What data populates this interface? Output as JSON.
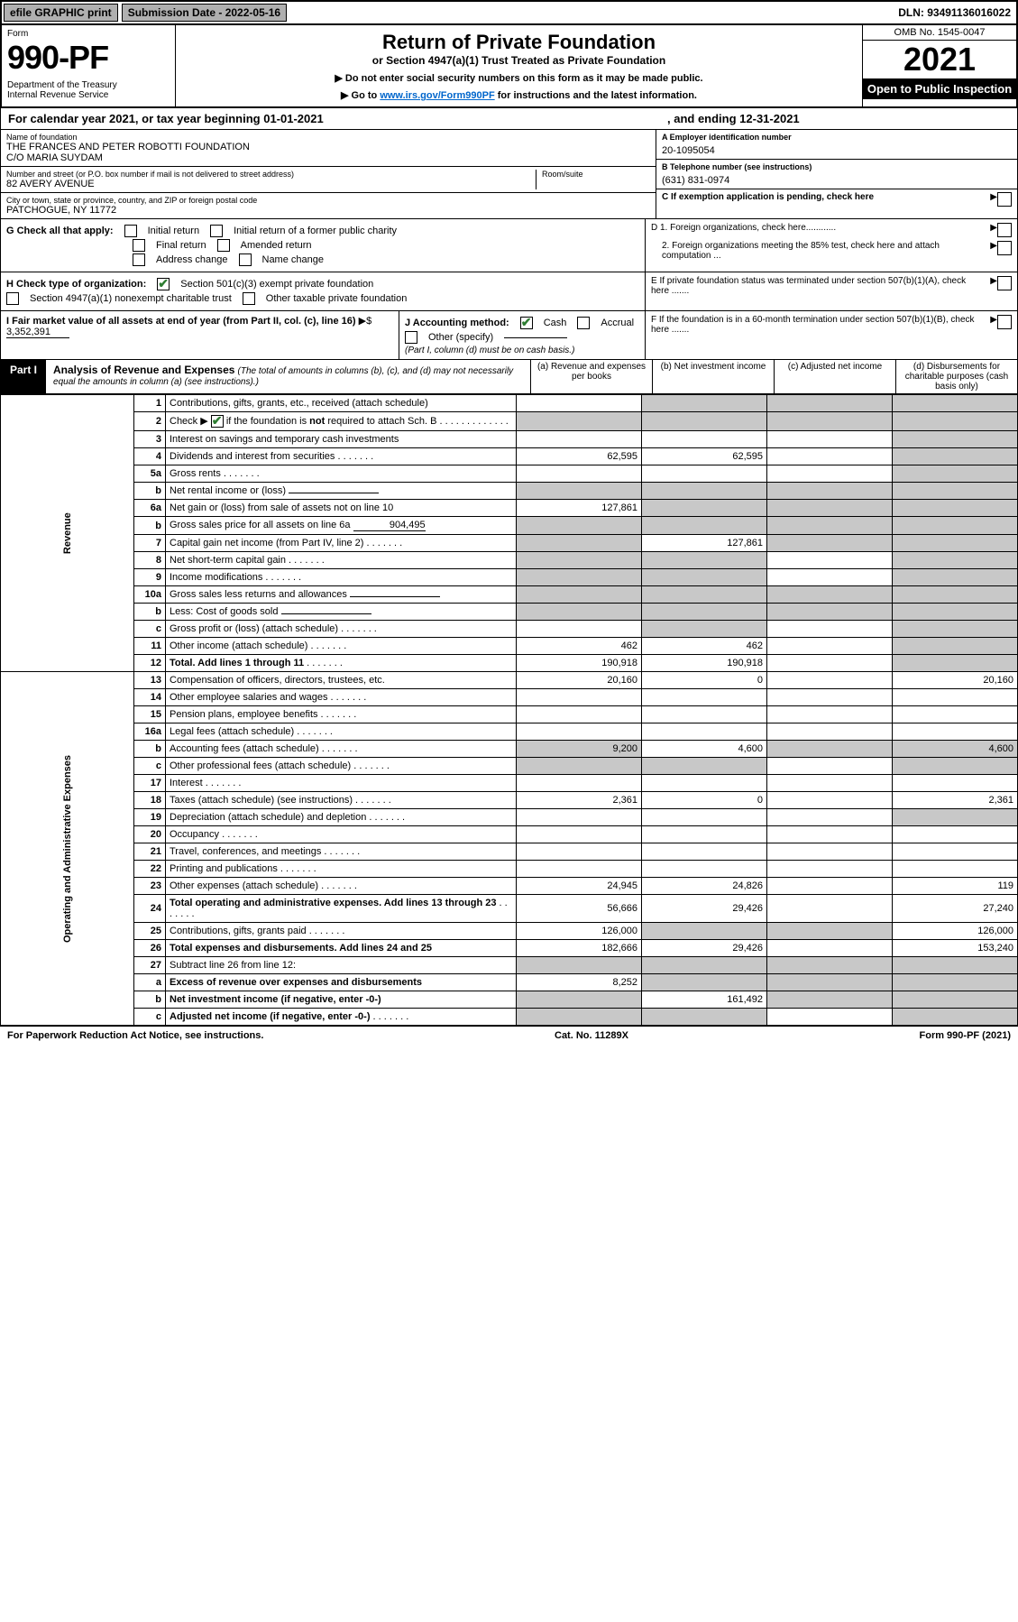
{
  "topbar": {
    "efile": "efile GRAPHIC print",
    "submission": "Submission Date - 2022-05-16",
    "dln": "DLN: 93491136016022"
  },
  "header": {
    "form_word": "Form",
    "form_num": "990-PF",
    "dept": "Department of the Treasury\nInternal Revenue Service",
    "title": "Return of Private Foundation",
    "subtitle": "or Section 4947(a)(1) Trust Treated as Private Foundation",
    "instr1": "▶ Do not enter social security numbers on this form as it may be made public.",
    "instr2a": "▶ Go to ",
    "instr2_link": "www.irs.gov/Form990PF",
    "instr2b": " for instructions and the latest information.",
    "omb": "OMB No. 1545-0047",
    "year": "2021",
    "open": "Open to Public Inspection"
  },
  "cal_year": {
    "left": "For calendar year 2021, or tax year beginning 01-01-2021",
    "right": ", and ending 12-31-2021"
  },
  "id": {
    "name_lbl": "Name of foundation",
    "name": "THE FRANCES AND PETER ROBOTTI FOUNDATION\nC/O MARIA SUYDAM",
    "addr_lbl": "Number and street (or P.O. box number if mail is not delivered to street address)",
    "addr": "82 AVERY AVENUE",
    "room_lbl": "Room/suite",
    "city_lbl": "City or town, state or province, country, and ZIP or foreign postal code",
    "city": "PATCHOGUE, NY  11772",
    "a_lbl": "A Employer identification number",
    "a_val": "20-1095054",
    "b_lbl": "B Telephone number (see instructions)",
    "b_val": "(631) 831-0974",
    "c_lbl": "C If exemption application is pending, check here"
  },
  "g": {
    "label": "G Check all that apply:",
    "opts": [
      "Initial return",
      "Initial return of a former public charity",
      "Final return",
      "Amended return",
      "Address change",
      "Name change"
    ]
  },
  "h": {
    "label": "H Check type of organization:",
    "opt1": "Section 501(c)(3) exempt private foundation",
    "opt2": "Section 4947(a)(1) nonexempt charitable trust",
    "opt3": "Other taxable private foundation"
  },
  "i": {
    "label": "I Fair market value of all assets at end of year (from Part II, col. (c), line 16)",
    "arrow": "▶$",
    "val": "3,352,391"
  },
  "j": {
    "label": "J Accounting method:",
    "cash": "Cash",
    "accrual": "Accrual",
    "other": "Other (specify)",
    "note": "(Part I, column (d) must be on cash basis.)"
  },
  "d_right": {
    "d1": "D 1. Foreign organizations, check here............",
    "d2": "2. Foreign organizations meeting the 85% test, check here and attach computation ...",
    "e": "E  If private foundation status was terminated under section 507(b)(1)(A), check here .......",
    "f": "F  If the foundation is in a 60-month termination under section 507(b)(1)(B), check here .......",
    "arrow": "▶"
  },
  "part1": {
    "tag": "Part I",
    "title": "Analysis of Revenue and Expenses",
    "note": "(The total of amounts in columns (b), (c), and (d) may not necessarily equal the amounts in column (a) (see instructions).)",
    "col_a": "(a)   Revenue and expenses per books",
    "col_b": "(b)   Net investment income",
    "col_c": "(c)   Adjusted net income",
    "col_d": "(d)   Disbursements for charitable purposes (cash basis only)"
  },
  "side": {
    "revenue": "Revenue",
    "expenses": "Operating and Administrative Expenses"
  },
  "rows": [
    {
      "n": "1",
      "d": "Contributions, gifts, grants, etc., received (attach schedule)"
    },
    {
      "n": "2",
      "d": "Check ▶ ☑ if the foundation is not required to attach Sch. B",
      "hascb": true,
      "dots": true
    },
    {
      "n": "3",
      "d": "Interest on savings and temporary cash investments"
    },
    {
      "n": "4",
      "d": "Dividends and interest from securities",
      "dots": true,
      "a": "62,595",
      "b": "62,595"
    },
    {
      "n": "5a",
      "d": "Gross rents",
      "dots": true
    },
    {
      "n": "b",
      "d": "Net rental income or (loss)",
      "inline": true
    },
    {
      "n": "6a",
      "d": "Net gain or (loss) from sale of assets not on line 10",
      "a": "127,861"
    },
    {
      "n": "b",
      "d": "Gross sales price for all assets on line 6a",
      "inline_val": "904,495"
    },
    {
      "n": "7",
      "d": "Capital gain net income (from Part IV, line 2)",
      "dots": true,
      "b": "127,861"
    },
    {
      "n": "8",
      "d": "Net short-term capital gain",
      "dots": true
    },
    {
      "n": "9",
      "d": "Income modifications",
      "dots": true
    },
    {
      "n": "10a",
      "d": "Gross sales less returns and allowances",
      "inline": true
    },
    {
      "n": "b",
      "d": "Less: Cost of goods sold",
      "dots": true,
      "inline": true
    },
    {
      "n": "c",
      "d": "Gross profit or (loss) (attach schedule)",
      "dots": true
    },
    {
      "n": "11",
      "d": "Other income (attach schedule)",
      "dots": true,
      "a": "462",
      "b": "462"
    },
    {
      "n": "12",
      "d": "Total. Add lines 1 through 11",
      "bold": true,
      "dots": true,
      "a": "190,918",
      "b": "190,918"
    }
  ],
  "exp_rows": [
    {
      "n": "13",
      "d": "Compensation of officers, directors, trustees, etc.",
      "a": "20,160",
      "b": "0",
      "dd": "20,160"
    },
    {
      "n": "14",
      "d": "Other employee salaries and wages",
      "dots": true
    },
    {
      "n": "15",
      "d": "Pension plans, employee benefits",
      "dots": true
    },
    {
      "n": "16a",
      "d": "Legal fees (attach schedule)",
      "dots": true
    },
    {
      "n": "b",
      "d": "Accounting fees (attach schedule)",
      "dots": true,
      "a": "9,200",
      "b": "4,600",
      "dd": "4,600"
    },
    {
      "n": "c",
      "d": "Other professional fees (attach schedule)",
      "dots": true
    },
    {
      "n": "17",
      "d": "Interest",
      "dots": true
    },
    {
      "n": "18",
      "d": "Taxes (attach schedule) (see instructions)",
      "dots": true,
      "a": "2,361",
      "b": "0",
      "dd": "2,361"
    },
    {
      "n": "19",
      "d": "Depreciation (attach schedule) and depletion",
      "dots": true
    },
    {
      "n": "20",
      "d": "Occupancy",
      "dots": true
    },
    {
      "n": "21",
      "d": "Travel, conferences, and meetings",
      "dots": true
    },
    {
      "n": "22",
      "d": "Printing and publications",
      "dots": true
    },
    {
      "n": "23",
      "d": "Other expenses (attach schedule)",
      "dots": true,
      "a": "24,945",
      "b": "24,826",
      "dd": "119"
    },
    {
      "n": "24",
      "d": "Total operating and administrative expenses. Add lines 13 through 23",
      "bold": true,
      "dots": true,
      "a": "56,666",
      "b": "29,426",
      "dd": "27,240"
    },
    {
      "n": "25",
      "d": "Contributions, gifts, grants paid",
      "dots": true,
      "a": "126,000",
      "dd": "126,000"
    },
    {
      "n": "26",
      "d": "Total expenses and disbursements. Add lines 24 and 25",
      "bold": true,
      "a": "182,666",
      "b": "29,426",
      "dd": "153,240"
    },
    {
      "n": "27",
      "d": "Subtract line 26 from line 12:"
    },
    {
      "n": "a",
      "d": "Excess of revenue over expenses and disbursements",
      "bold": true,
      "a": "8,252"
    },
    {
      "n": "b",
      "d": "Net investment income (if negative, enter -0-)",
      "bold": true,
      "b": "161,492"
    },
    {
      "n": "c",
      "d": "Adjusted net income (if negative, enter -0-)",
      "bold": true,
      "dots": true
    }
  ],
  "footer": {
    "left": "For Paperwork Reduction Act Notice, see instructions.",
    "mid": "Cat. No. 11289X",
    "right": "Form 990-PF (2021)"
  }
}
